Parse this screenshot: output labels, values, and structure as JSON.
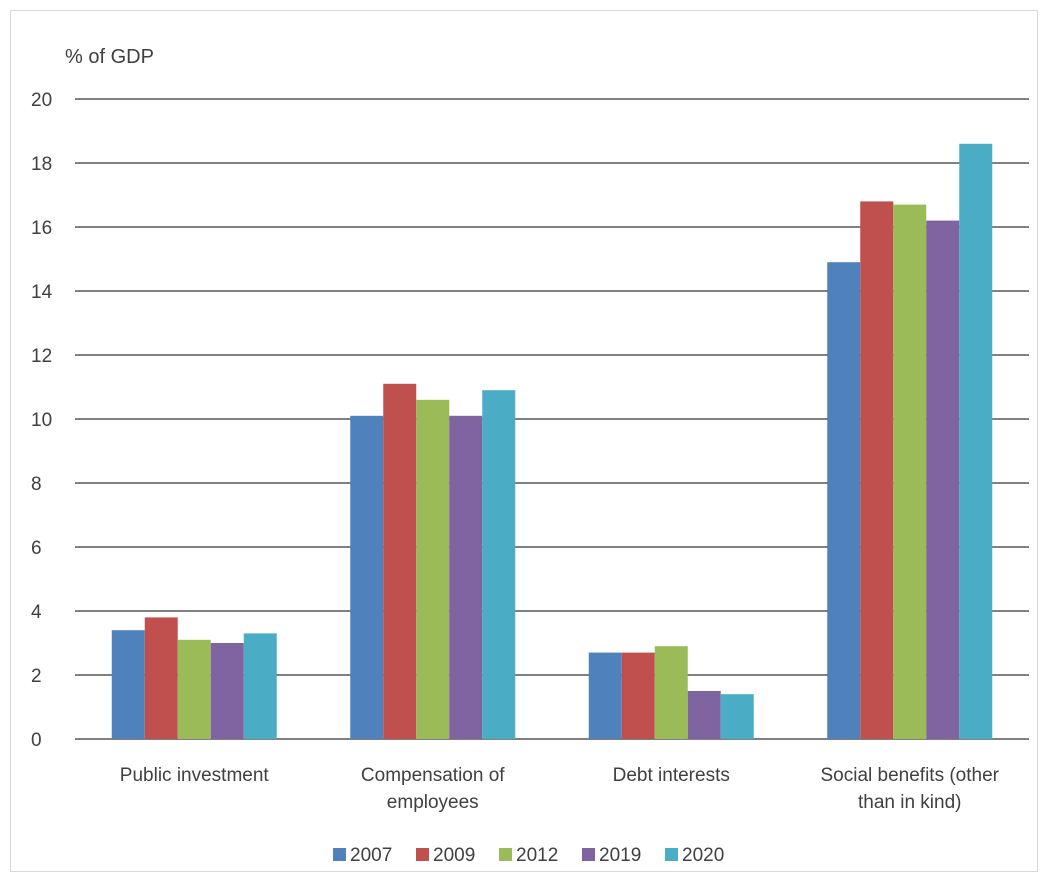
{
  "chart_data": {
    "type": "bar",
    "ylabel": "% of GDP",
    "ylim": [
      0,
      20
    ],
    "yticks": [
      0,
      2,
      4,
      6,
      8,
      10,
      12,
      14,
      16,
      18,
      20
    ],
    "grid": true,
    "legend_position": "bottom",
    "categories": [
      [
        "Public investment"
      ],
      [
        "Compensation of",
        "employees"
      ],
      [
        "Debt interests"
      ],
      [
        "Social benefits (other",
        "than in kind)"
      ]
    ],
    "series": [
      {
        "name": "2007",
        "color": "#4f81bd",
        "values": [
          3.4,
          10.1,
          2.7,
          14.9
        ]
      },
      {
        "name": "2009",
        "color": "#c0504d",
        "values": [
          3.8,
          11.1,
          2.7,
          16.8
        ]
      },
      {
        "name": "2012",
        "color": "#9bbb59",
        "values": [
          3.1,
          10.6,
          2.9,
          16.7
        ]
      },
      {
        "name": "2019",
        "color": "#8064a2",
        "values": [
          3.0,
          10.1,
          1.5,
          16.2
        ]
      },
      {
        "name": "2020",
        "color": "#4bacc6",
        "values": [
          3.3,
          10.9,
          1.4,
          18.6
        ]
      }
    ]
  }
}
